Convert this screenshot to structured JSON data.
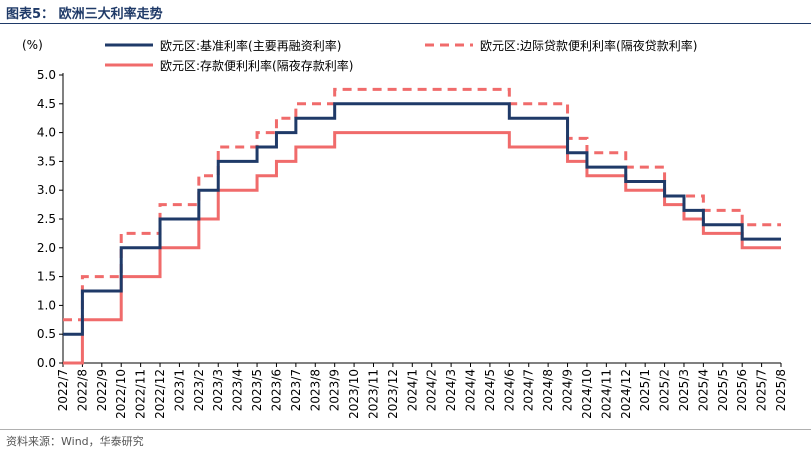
{
  "figure": {
    "title": "图表5：  欧洲三大利率走势",
    "source": "资料来源：Wind，华泰研究"
  },
  "chart_data": {
    "type": "line",
    "step": true,
    "unit_label": "(%)",
    "ylim": [
      0.0,
      5.0
    ],
    "yticks": [
      "0.0",
      "0.5",
      "1.0",
      "1.5",
      "2.0",
      "2.5",
      "3.0",
      "3.5",
      "4.0",
      "4.5",
      "5.0"
    ],
    "x": [
      "2022/7",
      "2022/8",
      "2022/9",
      "2022/10",
      "2022/11",
      "2022/12",
      "2023/1",
      "2023/2",
      "2023/3",
      "2023/4",
      "2023/5",
      "2023/6",
      "2023/7",
      "2023/8",
      "2023/9",
      "2023/10",
      "2023/11",
      "2023/12",
      "2024/1",
      "2024/2",
      "2024/3",
      "2024/4",
      "2024/5",
      "2024/6",
      "2024/7",
      "2024/8",
      "2024/9",
      "2024/10",
      "2024/11",
      "2024/12",
      "2025/1",
      "2025/2",
      "2025/3",
      "2025/4",
      "2025/5",
      "2025/6",
      "2025/7",
      "2025/8"
    ],
    "grid": false,
    "legend_placement": "top",
    "series": [
      {
        "name": "欧元区:基准利率(主要再融资利率)",
        "color": "#1f3a68",
        "style": "solid",
        "values": [
          0.5,
          1.25,
          1.25,
          2.0,
          2.0,
          2.5,
          2.5,
          3.0,
          3.5,
          3.5,
          3.75,
          4.0,
          4.25,
          4.25,
          4.5,
          4.5,
          4.5,
          4.5,
          4.5,
          4.5,
          4.5,
          4.5,
          4.5,
          4.25,
          4.25,
          4.25,
          3.65,
          3.4,
          3.4,
          3.15,
          3.15,
          2.9,
          2.65,
          2.4,
          2.4,
          2.15,
          2.15,
          2.15
        ]
      },
      {
        "name": "欧元区:边际贷款便利利率(隔夜贷款利率)",
        "color": "#f06b6b",
        "style": "dashed",
        "values": [
          0.75,
          1.5,
          1.5,
          2.25,
          2.25,
          2.75,
          2.75,
          3.25,
          3.75,
          3.75,
          4.0,
          4.25,
          4.5,
          4.5,
          4.75,
          4.75,
          4.75,
          4.75,
          4.75,
          4.75,
          4.75,
          4.75,
          4.75,
          4.5,
          4.5,
          4.5,
          3.9,
          3.65,
          3.65,
          3.4,
          3.4,
          2.9,
          2.9,
          2.65,
          2.65,
          2.4,
          2.4,
          2.4
        ]
      },
      {
        "name": "欧元区:存款便利利率(隔夜存款利率)",
        "color": "#f06b6b",
        "style": "solid",
        "values": [
          0.0,
          0.75,
          0.75,
          1.5,
          1.5,
          2.0,
          2.0,
          2.5,
          3.0,
          3.0,
          3.25,
          3.5,
          3.75,
          3.75,
          4.0,
          4.0,
          4.0,
          4.0,
          4.0,
          4.0,
          4.0,
          4.0,
          4.0,
          3.75,
          3.75,
          3.75,
          3.5,
          3.25,
          3.25,
          3.0,
          3.0,
          2.75,
          2.5,
          2.25,
          2.25,
          2.0,
          2.0,
          2.0
        ]
      }
    ]
  }
}
